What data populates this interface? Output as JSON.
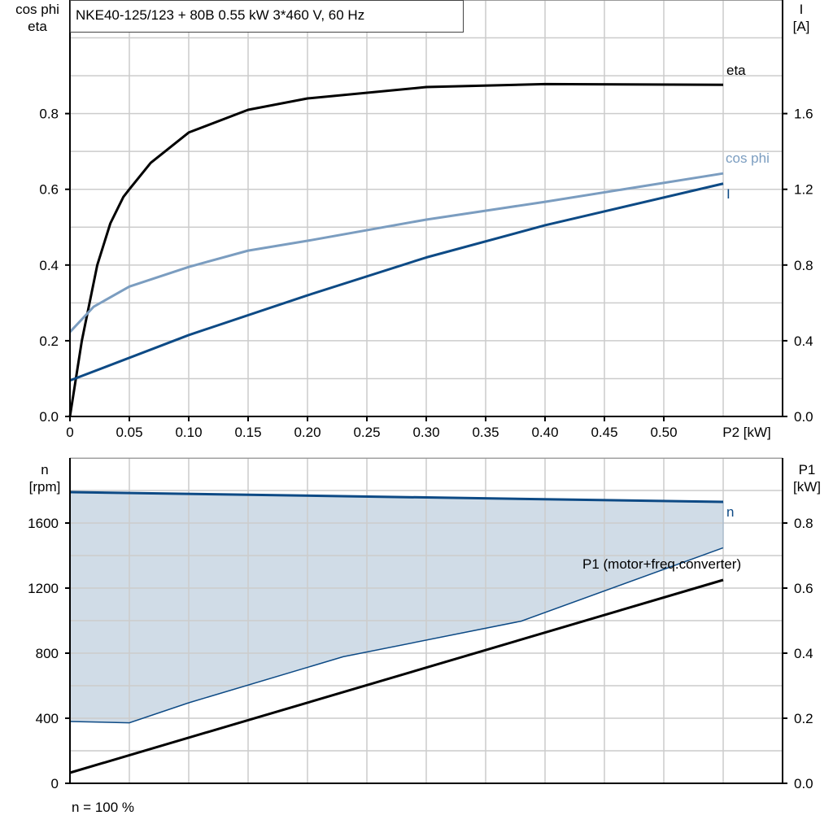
{
  "title": "NKE40-125/123 + 80B   0.55 kW   3*460 V, 60 Hz",
  "footer": "n = 100 %",
  "colors": {
    "eta": "#000000",
    "cos_phi": "#7b9dc0",
    "I": "#0d4a85",
    "n": "#0d4a85",
    "P1": "#000000",
    "fill": "#d0dce7",
    "grid": "#cccccc"
  },
  "chart_data": [
    {
      "type": "line",
      "xlabel": "P2 [kW]",
      "ylabel_left": [
        "cos phi",
        "eta"
      ],
      "ylabel_right": [
        "I",
        "[A]"
      ],
      "xlim": [
        0,
        0.6
      ],
      "ylim_left": [
        0,
        1.1
      ],
      "ylim_right": [
        0,
        2.2
      ],
      "x_ticks": [
        "0",
        "0.05",
        "0.10",
        "0.15",
        "0.20",
        "0.25",
        "0.30",
        "0.35",
        "0.40",
        "0.45",
        "0.50"
      ],
      "y_ticks_left": [
        "0.0",
        "0.2",
        "0.4",
        "0.6",
        "0.8"
      ],
      "y_ticks_right": [
        "0.0",
        "0.4",
        "0.8",
        "1.2",
        "1.6"
      ],
      "grid": true,
      "series": [
        {
          "name": "eta",
          "axis": "left",
          "x": [
            0,
            0.01,
            0.023,
            0.034,
            0.045,
            0.05,
            0.068,
            0.1,
            0.15,
            0.2,
            0.3,
            0.4,
            0.55
          ],
          "y": [
            0,
            0.2,
            0.4,
            0.51,
            0.58,
            0.6,
            0.67,
            0.75,
            0.81,
            0.84,
            0.87,
            0.878,
            0.876
          ]
        },
        {
          "name": "cos phi",
          "axis": "left",
          "x": [
            0,
            0.02,
            0.05,
            0.1,
            0.15,
            0.2,
            0.3,
            0.4,
            0.55
          ],
          "y": [
            0.223,
            0.29,
            0.343,
            0.395,
            0.438,
            0.464,
            0.52,
            0.567,
            0.642
          ]
        },
        {
          "name": "I",
          "axis": "right",
          "x": [
            0,
            0.1,
            0.2,
            0.3,
            0.4,
            0.55
          ],
          "y": [
            0.19,
            0.43,
            0.64,
            0.84,
            1.01,
            1.23
          ]
        }
      ]
    },
    {
      "type": "line",
      "ylabel_left": [
        "n",
        "[rpm]"
      ],
      "ylabel_right": [
        "P1",
        "[kW]"
      ],
      "xlim": [
        0,
        0.6
      ],
      "ylim_left": [
        0,
        2000
      ],
      "ylim_right": [
        0,
        1.0
      ],
      "y_ticks_left": [
        "0",
        "400",
        "800",
        "1200",
        "1600"
      ],
      "y_ticks_right": [
        "0.0",
        "0.2",
        "0.4",
        "0.6",
        "0.8"
      ],
      "grid": true,
      "series": [
        {
          "name": "n",
          "axis": "left",
          "x": [
            0,
            0.55
          ],
          "y": [
            1790,
            1730
          ]
        },
        {
          "name": "P1 (motor+freq.converter)",
          "axis": "right",
          "x": [
            0,
            0.55
          ],
          "y": [
            0.0325,
            0.625
          ]
        }
      ],
      "lower_limit": {
        "axis": "left",
        "x": [
          0,
          0.05,
          0.1,
          0.23,
          0.38,
          0.55
        ],
        "y": [
          380,
          372,
          495,
          778,
          997,
          1448
        ]
      }
    }
  ]
}
